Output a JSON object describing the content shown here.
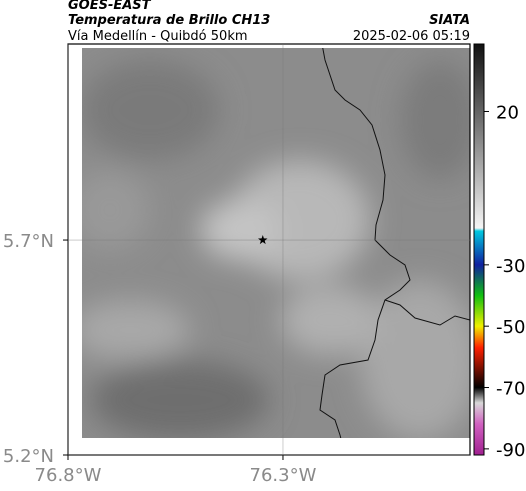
{
  "header": {
    "source": "GOES-EAST",
    "title": "Temperatura de Brillo CH13",
    "subtitle": "Vía Medellín - Quibdó 50km",
    "credit": "SIATA",
    "timestamp": "2025-02-06 05:19"
  },
  "map": {
    "xlim": [
      -76.8,
      -75.865
    ],
    "ylim": [
      5.2,
      6.156
    ],
    "xticks": [
      {
        "value": -76.8,
        "label": "76.8°W"
      },
      {
        "value": -76.3,
        "label": "76.3°W"
      }
    ],
    "yticks": [
      {
        "value": 5.2,
        "label": "5.2°N"
      },
      {
        "value": 5.7,
        "label": "5.7°N"
      }
    ],
    "grid": true,
    "marker": {
      "lon": -76.347,
      "lat": 5.7
    }
  },
  "colorbar": {
    "clim": [
      -92,
      42
    ],
    "ticks": [
      20,
      -30,
      -50,
      -70,
      -90
    ],
    "colormap": [
      {
        "value": 42,
        "color": "#111111"
      },
      {
        "value": -18,
        "color": "#f5f5f5"
      },
      {
        "value": -19,
        "color": "#00c8e0"
      },
      {
        "value": -30,
        "color": "#1020a0"
      },
      {
        "value": -40,
        "color": "#10c010"
      },
      {
        "value": -50,
        "color": "#f0f000"
      },
      {
        "value": -57,
        "color": "#ff2000"
      },
      {
        "value": -70,
        "color": "#000000"
      },
      {
        "value": -75,
        "color": "#d8d8d8"
      },
      {
        "value": -82,
        "color": "#d060c0"
      },
      {
        "value": -92,
        "color": "#a02090"
      }
    ]
  }
}
